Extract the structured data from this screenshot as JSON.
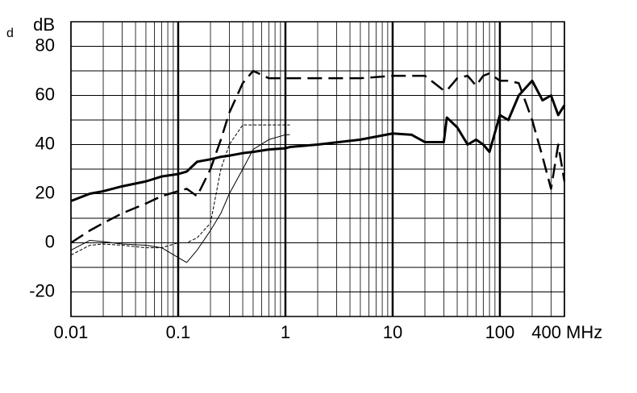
{
  "chart_data": {
    "type": "line",
    "corner_text": "d",
    "ylabel": "dB",
    "xlabel": "MHz",
    "xscale": "log",
    "grid": true,
    "xlim": [
      0.01,
      400
    ],
    "ylim": [
      -30,
      90
    ],
    "xticks": [
      0.01,
      0.1,
      1,
      10,
      100,
      400
    ],
    "yticks": [
      -20,
      0,
      20,
      40,
      60,
      80
    ],
    "x": [
      0.01,
      0.015,
      0.02,
      0.03,
      0.05,
      0.07,
      0.1,
      0.12,
      0.15,
      0.2,
      0.25,
      0.3,
      0.4,
      0.5,
      0.7,
      1,
      1.1,
      2,
      5,
      10,
      15,
      20,
      30,
      32,
      40,
      50,
      60,
      70,
      80,
      100,
      120,
      150,
      200,
      250,
      300,
      350,
      400
    ],
    "series": [
      {
        "color": "#000",
        "width": 3,
        "dash": "solid",
        "values": [
          17,
          20,
          21,
          23,
          25,
          27,
          28,
          29,
          33,
          34,
          35,
          35.5,
          36.5,
          37,
          38,
          38.5,
          39,
          40,
          42,
          44.5,
          44,
          41,
          41,
          51,
          47,
          40,
          42,
          40,
          37,
          52,
          50,
          60,
          66,
          58,
          60,
          52,
          56
        ]
      },
      {
        "color": "#000",
        "width": 2.5,
        "dash": "dashed",
        "values": [
          0,
          5,
          8,
          12,
          16,
          19,
          21,
          22,
          19,
          30,
          42,
          53,
          65,
          70,
          67,
          67,
          67,
          67,
          67,
          68,
          68,
          68,
          62,
          62,
          67,
          68,
          64,
          68,
          69,
          66,
          66,
          65,
          50,
          35,
          22,
          40,
          25
        ]
      },
      {
        "color": "#000",
        "width": 1,
        "dash": "solid",
        "values": [
          -3,
          1,
          0.5,
          -0.5,
          -1,
          -2,
          -6,
          -8,
          -3,
          5,
          12,
          20,
          30,
          38,
          42,
          44,
          44,
          null,
          null,
          null,
          null,
          null,
          null,
          null,
          null,
          null,
          null,
          null,
          null,
          null,
          null,
          null,
          null,
          null,
          null,
          null,
          null
        ]
      },
      {
        "color": "#000",
        "width": 1,
        "dash": "dotted",
        "values": [
          -5,
          -1,
          -0.5,
          -1,
          -2,
          -2,
          0,
          0,
          2,
          8,
          30,
          40,
          48,
          48,
          48,
          48,
          48,
          null,
          null,
          null,
          null,
          null,
          null,
          null,
          null,
          null,
          null,
          null,
          null,
          null,
          null,
          null,
          null,
          null,
          null,
          null,
          null
        ]
      }
    ]
  }
}
